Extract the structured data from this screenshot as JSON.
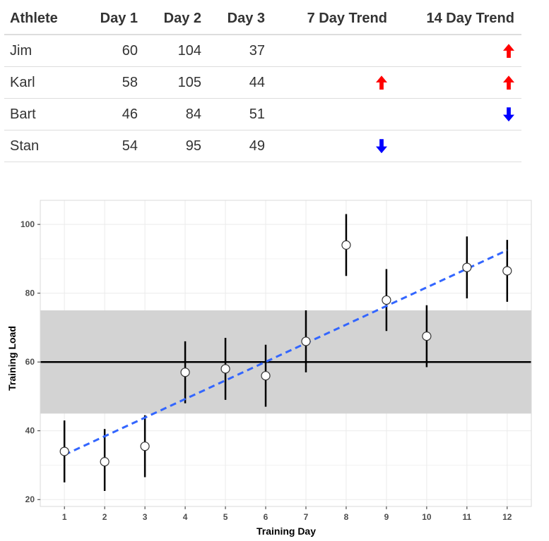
{
  "table": {
    "headers": [
      "Athlete",
      "Day 1",
      "Day 2",
      "Day 3",
      "7 Day Trend",
      "14 Day Trend"
    ],
    "rows": [
      {
        "athlete": "Jim",
        "day1": "60",
        "day2": "104",
        "day3": "37",
        "trend7": "",
        "trend14": "up"
      },
      {
        "athlete": "Karl",
        "day1": "58",
        "day2": "105",
        "day3": "44",
        "trend7": "up",
        "trend14": "up"
      },
      {
        "athlete": "Bart",
        "day1": "46",
        "day2": "84",
        "day3": "51",
        "trend7": "",
        "trend14": "down"
      },
      {
        "athlete": "Stan",
        "day1": "54",
        "day2": "95",
        "day3": "49",
        "trend7": "down",
        "trend14": ""
      }
    ],
    "colors": {
      "up": "#ff0000",
      "down": "#0000ff"
    }
  },
  "chart_data": {
    "type": "scatter",
    "title": "",
    "xlabel": "Training Day",
    "ylabel": "Training Load",
    "x": [
      1,
      2,
      3,
      4,
      5,
      6,
      7,
      8,
      9,
      10,
      11,
      12
    ],
    "y": [
      34,
      31,
      35.5,
      57,
      58,
      56,
      66,
      94,
      78,
      67.5,
      87.5,
      86.5
    ],
    "error_low": [
      25,
      22.5,
      26.5,
      48,
      49,
      47,
      57,
      85,
      69,
      58.5,
      78.5,
      77.5
    ],
    "error_high": [
      43,
      40.5,
      44.5,
      66,
      67,
      65,
      75,
      103,
      87,
      76.5,
      96.5,
      95.5
    ],
    "reference_line": 60,
    "reference_band": [
      45,
      75
    ],
    "trend_line": {
      "x": [
        1,
        12
      ],
      "y": [
        33,
        92.5
      ]
    },
    "xlim": [
      0.4,
      12.6
    ],
    "ylim": [
      18,
      107
    ],
    "x_ticks": [
      "1",
      "2",
      "3",
      "4",
      "5",
      "6",
      "7",
      "8",
      "9",
      "10",
      "11",
      "12"
    ],
    "y_ticks": [
      "20",
      "40",
      "60",
      "80",
      "100"
    ],
    "grid": true,
    "colors": {
      "band": "#d3d3d3",
      "reference": "#000000",
      "trend": "#3366ff",
      "error_bar": "#000000",
      "point_fill": "#ffffff",
      "point_stroke": "#333333",
      "grid": "#ebebeb",
      "panel_border": "#d9d9d9"
    }
  }
}
